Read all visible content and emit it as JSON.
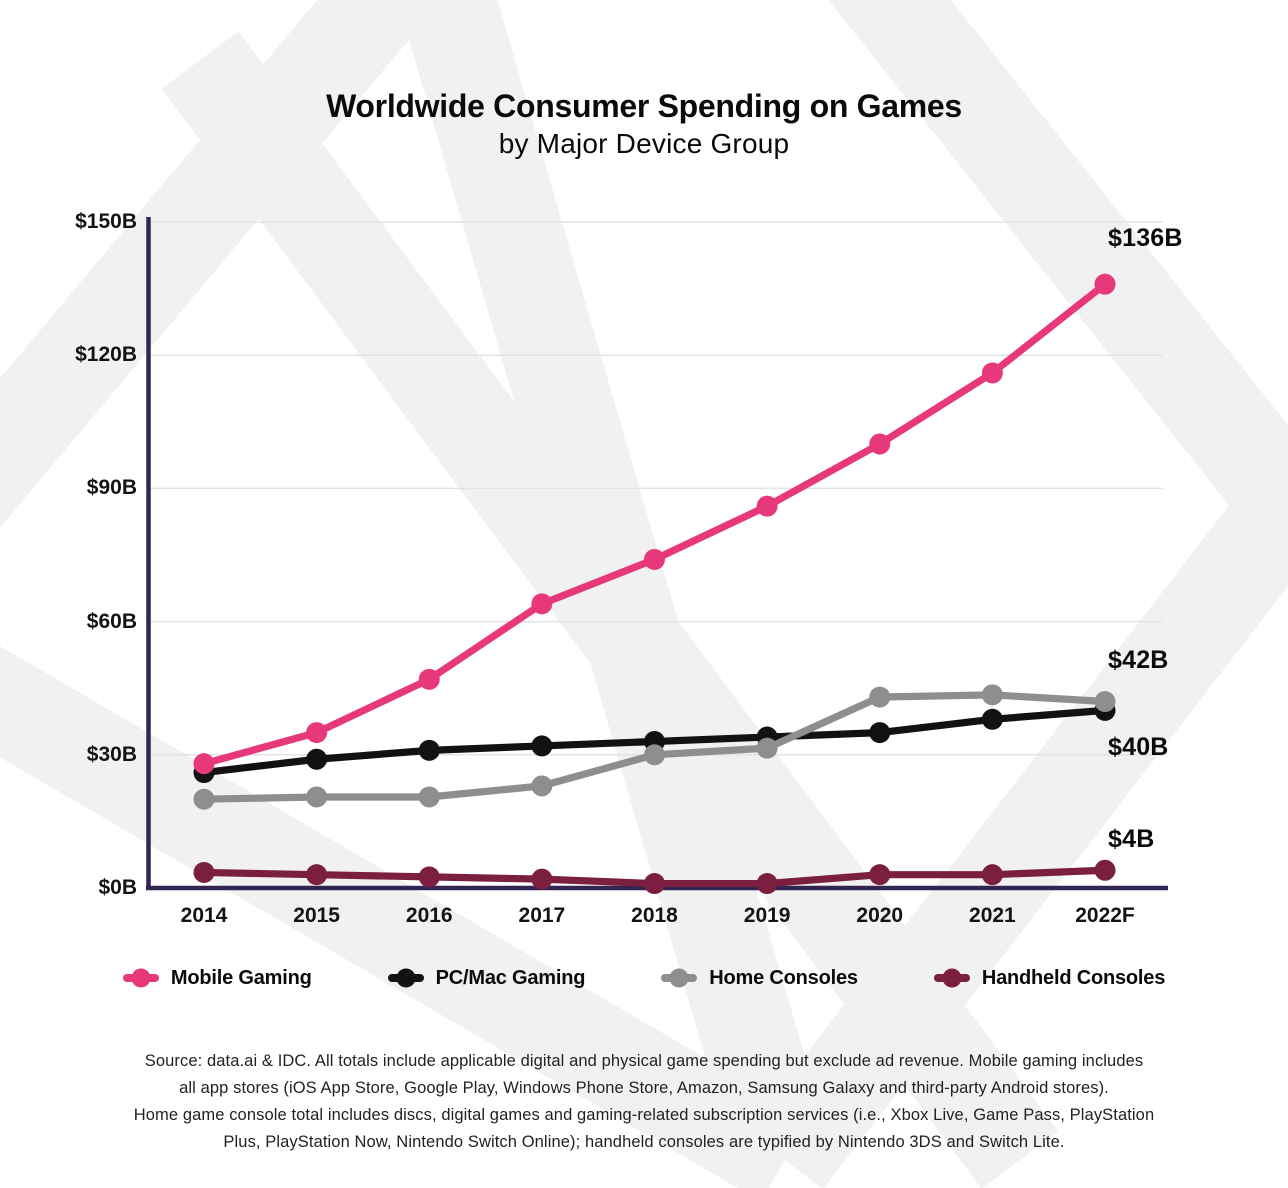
{
  "chart_data": {
    "type": "line",
    "title": "Worldwide Consumer Spending on Games",
    "subtitle": "by Major Device Group",
    "categories": [
      "2014",
      "2015",
      "2016",
      "2017",
      "2018",
      "2019",
      "2020",
      "2021",
      "2022F"
    ],
    "xlabel": "",
    "ylabel": "",
    "ylim": [
      0,
      150
    ],
    "yticks": [
      0,
      30,
      60,
      90,
      120,
      150
    ],
    "ytick_labels": [
      "$0B",
      "$30B",
      "$60B",
      "$90B",
      "$120B",
      "$150B"
    ],
    "grid": "horizontal-only",
    "legend_position": "bottom",
    "series": [
      {
        "name": "Mobile Gaming",
        "color": "#e7387c",
        "end_label": "$136B",
        "values": [
          28,
          35,
          47,
          64,
          74,
          86,
          100,
          116,
          136
        ]
      },
      {
        "name": "PC/Mac Gaming",
        "color": "#121212",
        "end_label": "$40B",
        "values": [
          26,
          29,
          31,
          32,
          33,
          34,
          35,
          38,
          40
        ]
      },
      {
        "name": "Home Consoles",
        "color": "#8e8e8e",
        "end_label": "$42B",
        "values": [
          20,
          20.5,
          20.5,
          23,
          30,
          31.5,
          43,
          43.5,
          42
        ]
      },
      {
        "name": "Handheld Consoles",
        "color": "#7b1f40",
        "end_label": "$4B",
        "values": [
          3.5,
          3,
          2.5,
          2,
          1,
          1,
          3,
          3,
          4
        ]
      }
    ]
  },
  "colors": {
    "axis": "#332553",
    "gridline": "#e3e3e3",
    "watermark": "#f1f1f1"
  },
  "source": {
    "lines": [
      "Source: data.ai & IDC. All totals include applicable digital and physical game spending but exclude ad revenue. Mobile gaming includes",
      "all app stores (iOS App Store, Google Play, Windows Phone Store, Amazon, Samsung Galaxy and third-party Android stores).",
      "Home game console total includes discs, digital games and gaming-related subscription services (i.e., Xbox Live, Game Pass, PlayStation",
      "Plus, PlayStation Now, Nintendo Switch Online); handheld consoles are typified by Nintendo 3DS and Switch Lite."
    ]
  }
}
